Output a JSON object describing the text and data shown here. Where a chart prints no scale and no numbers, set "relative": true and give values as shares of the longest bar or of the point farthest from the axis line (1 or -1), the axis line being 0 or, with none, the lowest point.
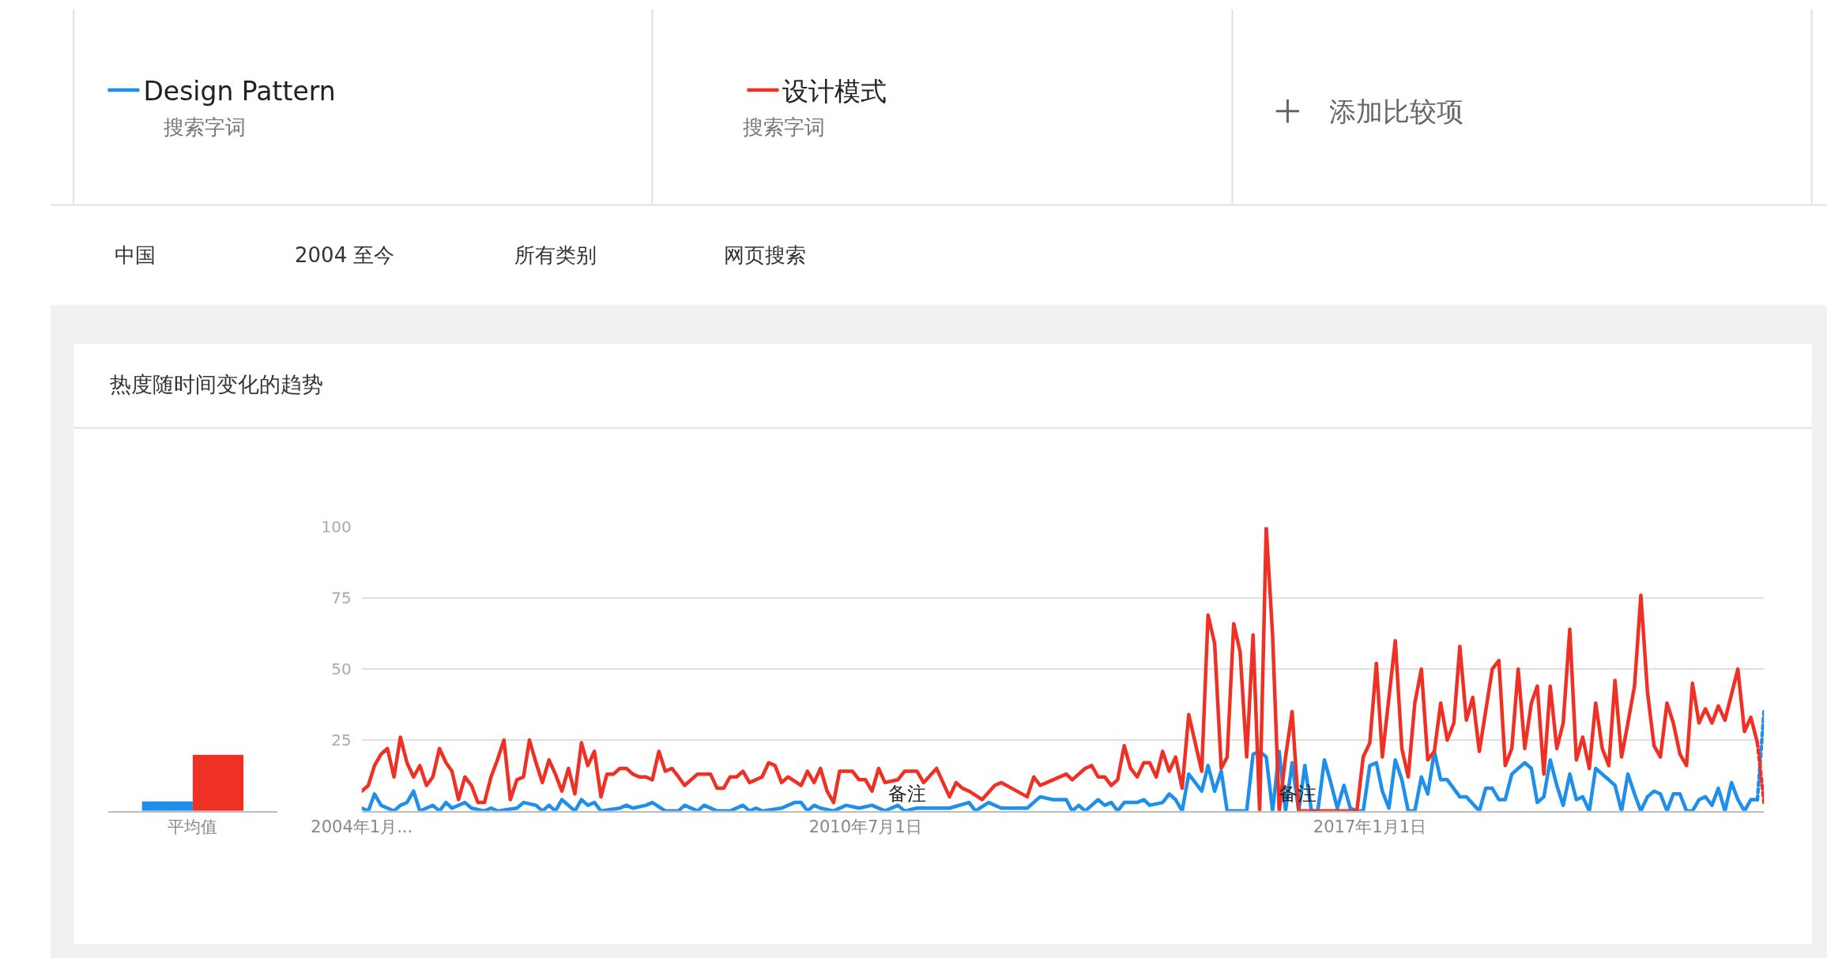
{
  "chart_data": [
    {
      "type": "line",
      "title": "热度随时间变化的趋势",
      "annotations": [
        "搜索字词",
        "搜索字词",
        "添加比较项",
        "中国",
        "2004 至今",
        "所有类别",
        "网页搜索",
        "备注",
        "备注"
      ],
      "xlim": [
        "2004-01",
        "2022-02"
      ],
      "xticks": [
        {
          "value": "2004-01-01",
          "label": "2004年1月..."
        },
        {
          "value": "2010-07-01",
          "label": "2010年7月1日"
        },
        {
          "value": "2017-01-01",
          "label": "2017年1月1日"
        }
      ],
      "ylim": [
        0,
        100
      ],
      "yticks": [
        {
          "value": 0,
          "label": null
        },
        25,
        50,
        75,
        100
      ],
      "grid": "y",
      "legend": "top",
      "marker": "none",
      "line_style": "solid",
      "series": [
        {
          "name": "Design Pattern",
          "color": "#1e8fea",
          "x": [
            "2004-01",
            "2004-02",
            "2004-03",
            "2004-04",
            "2004-05",
            "2004-06",
            "2004-07",
            "2004-08",
            "2004-09",
            "2004-10",
            "2004-11",
            "2004-12",
            "2005-01",
            "2005-02",
            "2005-03",
            "2005-05",
            "2005-06",
            "2005-08",
            "2005-09",
            "2005-10",
            "2006-01",
            "2006-02",
            "2006-04",
            "2006-05",
            "2006-06",
            "2006-07",
            "2006-08",
            "2006-10",
            "2006-11",
            "2006-12",
            "2007-01",
            "2007-02",
            "2007-05",
            "2007-06",
            "2007-07",
            "2007-09",
            "2007-10",
            "2007-12",
            "2008-02",
            "2008-03",
            "2008-05",
            "2008-06",
            "2008-08",
            "2008-10",
            "2008-12",
            "2009-01",
            "2009-02",
            "2009-03",
            "2009-06",
            "2009-08",
            "2009-09",
            "2009-10",
            "2009-11",
            "2009-12",
            "2010-02",
            "2010-04",
            "2010-06",
            "2010-08",
            "2010-10",
            "2010-12",
            "2011-01",
            "2011-03",
            "2011-06",
            "2011-08",
            "2011-11",
            "2011-12",
            "2012-02",
            "2012-04",
            "2012-08",
            "2012-10",
            "2012-12",
            "2013-02",
            "2013-03",
            "2013-04",
            "2013-05",
            "2013-07",
            "2013-08",
            "2013-09",
            "2013-10",
            "2013-11",
            "2014-01",
            "2014-02",
            "2014-03",
            "2014-05",
            "2014-06",
            "2014-07",
            "2014-08",
            "2014-09",
            "2014-11",
            "2014-12",
            "2015-01",
            "2015-02",
            "2015-03",
            "2015-06",
            "2015-07",
            "2015-08",
            "2015-09",
            "2015-10",
            "2015-11",
            "2015-12",
            "2016-01",
            "2016-02",
            "2016-03",
            "2016-04",
            "2016-05",
            "2016-06",
            "2016-07",
            "2016-08",
            "2016-09",
            "2016-10",
            "2016-11",
            "2016-12",
            "2017-01",
            "2017-02",
            "2017-03",
            "2017-04",
            "2017-05",
            "2017-06",
            "2017-07",
            "2017-08",
            "2017-09",
            "2017-10",
            "2017-11",
            "2017-12",
            "2018-01",
            "2018-03",
            "2018-04",
            "2018-06",
            "2018-07",
            "2018-08",
            "2018-09",
            "2018-10",
            "2018-11",
            "2019-01",
            "2019-02",
            "2019-03",
            "2019-04",
            "2019-05",
            "2019-06",
            "2019-07",
            "2019-08",
            "2019-09",
            "2019-10",
            "2019-11",
            "2019-12",
            "2020-02",
            "2020-03",
            "2020-04",
            "2020-05",
            "2020-06",
            "2020-07",
            "2020-08",
            "2020-09",
            "2020-10",
            "2020-11",
            "2020-12",
            "2021-01",
            "2021-02",
            "2021-03",
            "2021-04",
            "2021-05",
            "2021-06",
            "2021-07",
            "2021-08",
            "2021-09",
            "2021-10",
            "2021-11",
            "2021-12",
            "2022-01"
          ],
          "values": [
            1,
            0,
            6,
            2,
            1,
            0,
            2,
            3,
            7,
            0,
            1,
            2,
            0,
            3,
            1,
            3,
            1,
            0,
            1,
            0,
            1,
            3,
            2,
            0,
            2,
            0,
            4,
            0,
            4,
            2,
            3,
            0,
            1,
            2,
            1,
            2,
            3,
            0,
            0,
            2,
            0,
            2,
            0,
            0,
            2,
            0,
            1,
            0,
            1,
            3,
            3,
            0,
            2,
            1,
            0,
            2,
            1,
            2,
            0,
            2,
            0,
            1,
            1,
            1,
            3,
            0,
            3,
            1,
            1,
            5,
            4,
            4,
            0,
            2,
            0,
            4,
            2,
            3,
            0,
            3,
            3,
            4,
            2,
            3,
            6,
            4,
            0,
            13,
            7,
            16,
            7,
            14,
            0,
            0,
            20,
            21,
            19,
            0,
            21,
            0,
            17,
            0,
            16,
            0,
            0,
            18,
            10,
            1,
            9,
            1,
            0,
            0,
            16,
            17,
            7,
            1,
            18,
            11,
            0,
            0,
            12,
            6,
            21,
            11,
            11,
            5,
            5,
            0,
            8,
            8,
            4,
            4,
            13,
            17,
            15,
            3,
            5,
            18,
            9,
            2,
            13,
            4,
            5,
            0,
            15,
            11,
            9,
            0,
            13,
            6,
            0,
            5,
            7,
            6,
            0,
            6,
            6,
            0,
            0,
            4,
            5,
            2,
            8,
            0,
            10,
            4,
            0,
            4,
            4
          ]
        },
        {
          "name": "设计模式",
          "color": "#ee3124",
          "x": [
            "2004-01",
            "2004-02",
            "2004-03",
            "2004-04",
            "2004-05",
            "2004-06",
            "2004-07",
            "2004-08",
            "2004-09",
            "2004-10",
            "2004-11",
            "2004-12",
            "2005-01",
            "2005-02",
            "2005-03",
            "2005-04",
            "2005-05",
            "2005-06",
            "2005-07",
            "2005-08",
            "2005-09",
            "2005-10",
            "2005-11",
            "2005-12",
            "2006-01",
            "2006-02",
            "2006-03",
            "2006-04",
            "2006-05",
            "2006-06",
            "2006-07",
            "2006-08",
            "2006-09",
            "2006-10",
            "2006-11",
            "2006-12",
            "2007-01",
            "2007-02",
            "2007-03",
            "2007-04",
            "2007-05",
            "2007-06",
            "2007-07",
            "2007-08",
            "2007-09",
            "2007-10",
            "2007-11",
            "2007-12",
            "2008-01",
            "2008-02",
            "2008-03",
            "2008-04",
            "2008-05",
            "2008-07",
            "2008-08",
            "2008-09",
            "2008-10",
            "2008-11",
            "2008-12",
            "2009-01",
            "2009-03",
            "2009-04",
            "2009-05",
            "2009-06",
            "2009-07",
            "2009-09",
            "2009-10",
            "2009-11",
            "2009-12",
            "2010-01",
            "2010-02",
            "2010-03",
            "2010-05",
            "2010-06",
            "2010-07",
            "2010-08",
            "2010-09",
            "2010-10",
            "2010-12",
            "2011-01",
            "2011-03",
            "2011-04",
            "2011-06",
            "2011-08",
            "2011-09",
            "2011-10",
            "2011-11",
            "2012-01",
            "2012-03",
            "2012-04",
            "2012-08",
            "2012-09",
            "2012-10",
            "2012-12",
            "2013-02",
            "2013-03",
            "2013-05",
            "2013-06",
            "2013-07",
            "2013-08",
            "2013-09",
            "2013-10",
            "2013-11",
            "2013-12",
            "2014-01",
            "2014-02",
            "2014-03",
            "2014-04",
            "2014-05",
            "2014-06",
            "2014-07",
            "2014-08",
            "2014-09",
            "2014-11",
            "2014-12",
            "2015-01",
            "2015-02",
            "2015-03",
            "2015-04",
            "2015-05",
            "2015-06",
            "2015-07",
            "2015-08",
            "2015-09",
            "2015-10",
            "2015-11",
            "2015-12",
            "2016-01",
            "2016-02",
            "2016-11",
            "2016-12",
            "2017-01",
            "2017-02",
            "2017-03",
            "2017-05",
            "2017-06",
            "2017-07",
            "2017-08",
            "2017-09",
            "2017-10",
            "2017-11",
            "2017-12",
            "2018-01",
            "2018-02",
            "2018-03",
            "2018-04",
            "2018-05",
            "2018-06",
            "2018-08",
            "2018-09",
            "2018-10",
            "2018-11",
            "2018-12",
            "2019-01",
            "2019-02",
            "2019-03",
            "2019-04",
            "2019-05",
            "2019-06",
            "2019-07",
            "2019-08",
            "2019-09",
            "2019-10",
            "2019-11",
            "2019-12",
            "2020-01",
            "2020-02",
            "2020-03",
            "2020-04",
            "2020-05",
            "2020-06",
            "2020-07",
            "2020-08",
            "2020-09",
            "2020-10",
            "2020-11",
            "2020-12",
            "2021-01",
            "2021-02",
            "2021-03",
            "2021-04",
            "2021-05",
            "2021-06",
            "2021-07",
            "2021-08",
            "2021-10",
            "2021-11",
            "2021-12",
            "2022-01"
          ],
          "values": [
            7,
            9,
            16,
            20,
            22,
            12,
            26,
            17,
            12,
            16,
            9,
            12,
            22,
            17,
            14,
            4,
            12,
            9,
            3,
            3,
            12,
            18,
            25,
            4,
            11,
            12,
            25,
            17,
            10,
            18,
            13,
            7,
            15,
            6,
            24,
            16,
            21,
            5,
            13,
            13,
            15,
            15,
            13,
            12,
            12,
            11,
            21,
            14,
            15,
            12,
            9,
            11,
            13,
            13,
            8,
            8,
            12,
            12,
            14,
            10,
            12,
            17,
            16,
            10,
            12,
            9,
            14,
            10,
            15,
            7,
            3,
            14,
            14,
            11,
            11,
            7,
            15,
            10,
            11,
            14,
            14,
            10,
            15,
            5,
            10,
            8,
            7,
            4,
            9,
            10,
            5,
            12,
            9,
            11,
            13,
            11,
            15,
            16,
            12,
            12,
            9,
            11,
            23,
            15,
            12,
            17,
            17,
            12,
            21,
            14,
            19,
            8,
            34,
            14,
            69,
            59,
            15,
            19,
            66,
            56,
            19,
            62,
            0,
            100,
            62,
            0,
            19,
            35,
            0,
            0,
            19,
            24,
            52,
            19,
            60,
            22,
            12,
            38,
            50,
            18,
            21,
            38,
            25,
            31,
            58,
            32,
            40,
            21,
            50,
            53,
            16,
            22,
            50,
            22,
            38,
            44,
            13,
            44,
            22,
            31,
            64,
            18,
            26,
            15,
            38,
            22,
            16,
            46,
            19,
            31,
            44,
            76,
            42,
            23,
            19,
            38,
            31,
            20,
            16,
            45,
            31,
            36,
            31,
            37,
            32,
            50,
            28,
            33,
            24
          ]
        },
        {
          "color": "#1e8fea",
          "line_style": "dotted",
          "x": [
            "2022-01",
            "2022-02"
          ],
          "values": [
            4,
            35
          ]
        },
        {
          "color": "#ee3124",
          "line_style": "dotted",
          "x": [
            "2022-01",
            "2022-02"
          ],
          "values": [
            24,
            3
          ]
        }
      ]
    },
    {
      "type": "bar",
      "relative": true,
      "categories": [
        "平均值"
      ],
      "series": [
        {
          "color": "#1e8fea",
          "values": [
            0.17
          ]
        },
        {
          "color": "#ee3124",
          "values": [
            1
          ]
        }
      ]
    }
  ]
}
